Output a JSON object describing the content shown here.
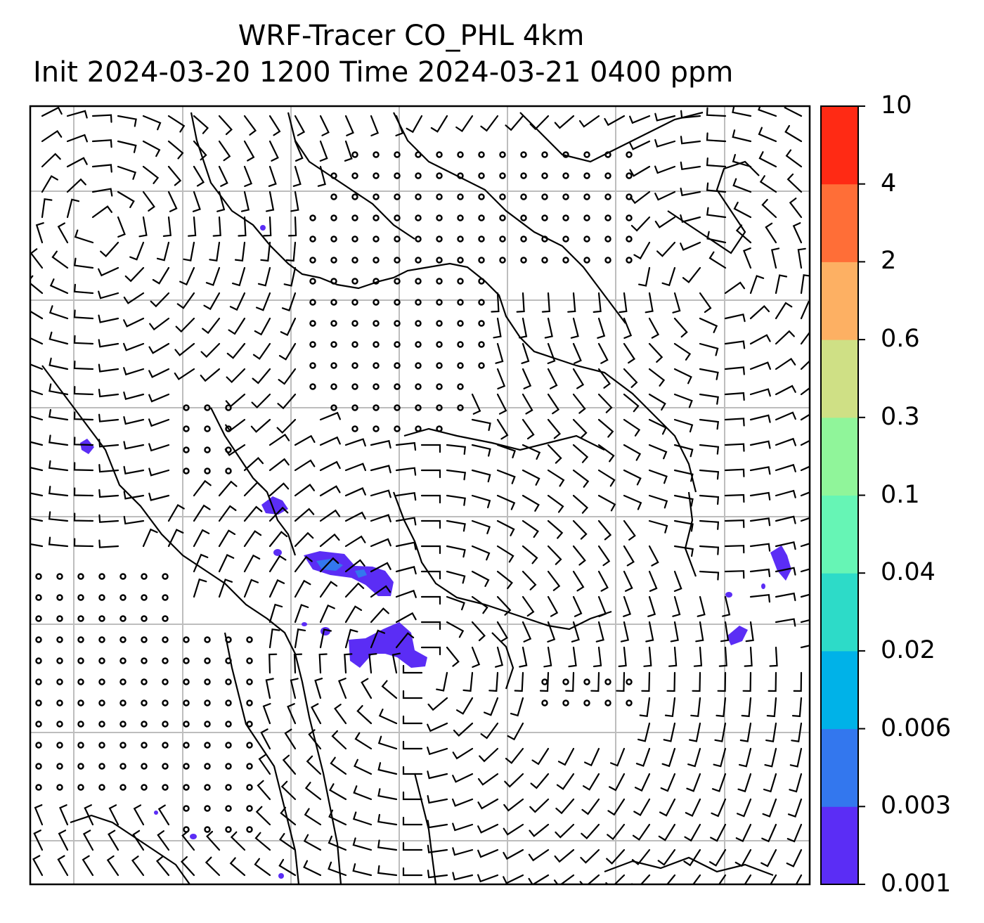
{
  "title": {
    "line1": "WRF-Tracer CO_PHL 4km",
    "line2": "Init 2024-03-20 1200 Time 2024-03-21 0400 ppm"
  },
  "colorbar": {
    "levels": [
      "0.001",
      "0.003",
      "0.006",
      "0.02",
      "0.04",
      "0.1",
      "0.3",
      "0.6",
      "2",
      "4",
      "10"
    ],
    "colors": [
      "#5b2df5",
      "#3377ee",
      "#00b2e8",
      "#2ddbc8",
      "#66f5b5",
      "#90f59a",
      "#cfe085",
      "#fdb063",
      "#ff6e37",
      "#ff2a14"
    ]
  },
  "map": {
    "gridline_color": "#bdbdbd",
    "coast_color": "#000000",
    "plume_color": "#5b2df5",
    "plume_core_color": "#3377ee"
  }
}
